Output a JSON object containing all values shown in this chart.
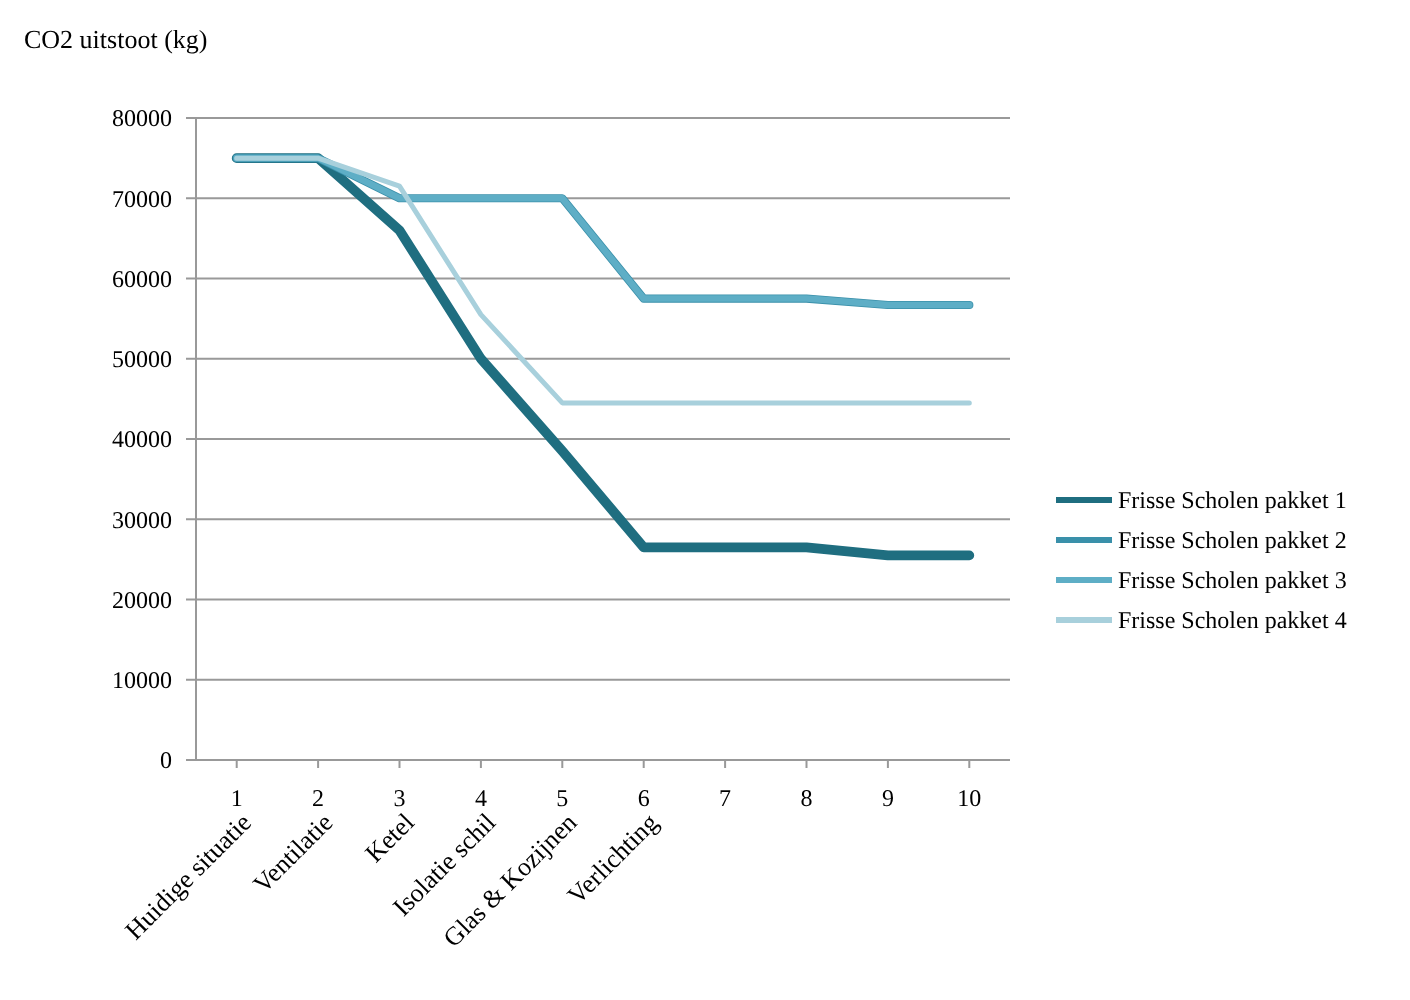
{
  "chart_data": {
    "type": "line",
    "ylabel": "CO2 uitstoot (kg)",
    "categories": [
      "1",
      "2",
      "3",
      "4",
      "5",
      "6",
      "7",
      "8",
      "9",
      "10"
    ],
    "series": [
      {
        "name": "Frisse Scholen pakket 1",
        "color": "#1f6e80",
        "values": [
          75000,
          75000,
          66000,
          50000,
          38500,
          26500,
          26500,
          26500,
          25500,
          25500
        ]
      },
      {
        "name": "Frisse Scholen pakket 2",
        "color": "#3a90aa",
        "values": [
          75000,
          75000,
          70000,
          70000,
          70000,
          57500,
          57500,
          57500,
          56700,
          56700
        ]
      },
      {
        "name": "Frisse Scholen pakket 3",
        "color": "#5eaec6",
        "values": [
          75000,
          75000,
          70000,
          70000,
          70000,
          57500,
          57500,
          57500,
          56700,
          56700
        ]
      },
      {
        "name": "Frisse Scholen pakket 4",
        "color": "#a8d0dc",
        "values": [
          75000,
          75000,
          71500,
          55500,
          44500,
          44500,
          44500,
          44500,
          44500,
          44500
        ]
      }
    ],
    "annotations": [
      "Huidige situatie",
      "Ventilatie",
      "Ketel",
      "Isolatie schil",
      "Glas & Kozijnen",
      "Verlichting"
    ],
    "ylim": [
      0,
      80000
    ],
    "yticks": [
      0,
      10000,
      20000,
      30000,
      40000,
      50000,
      60000,
      70000,
      80000
    ],
    "grid": "y",
    "legend": "right",
    "marker": "none",
    "line_style": "solid"
  }
}
